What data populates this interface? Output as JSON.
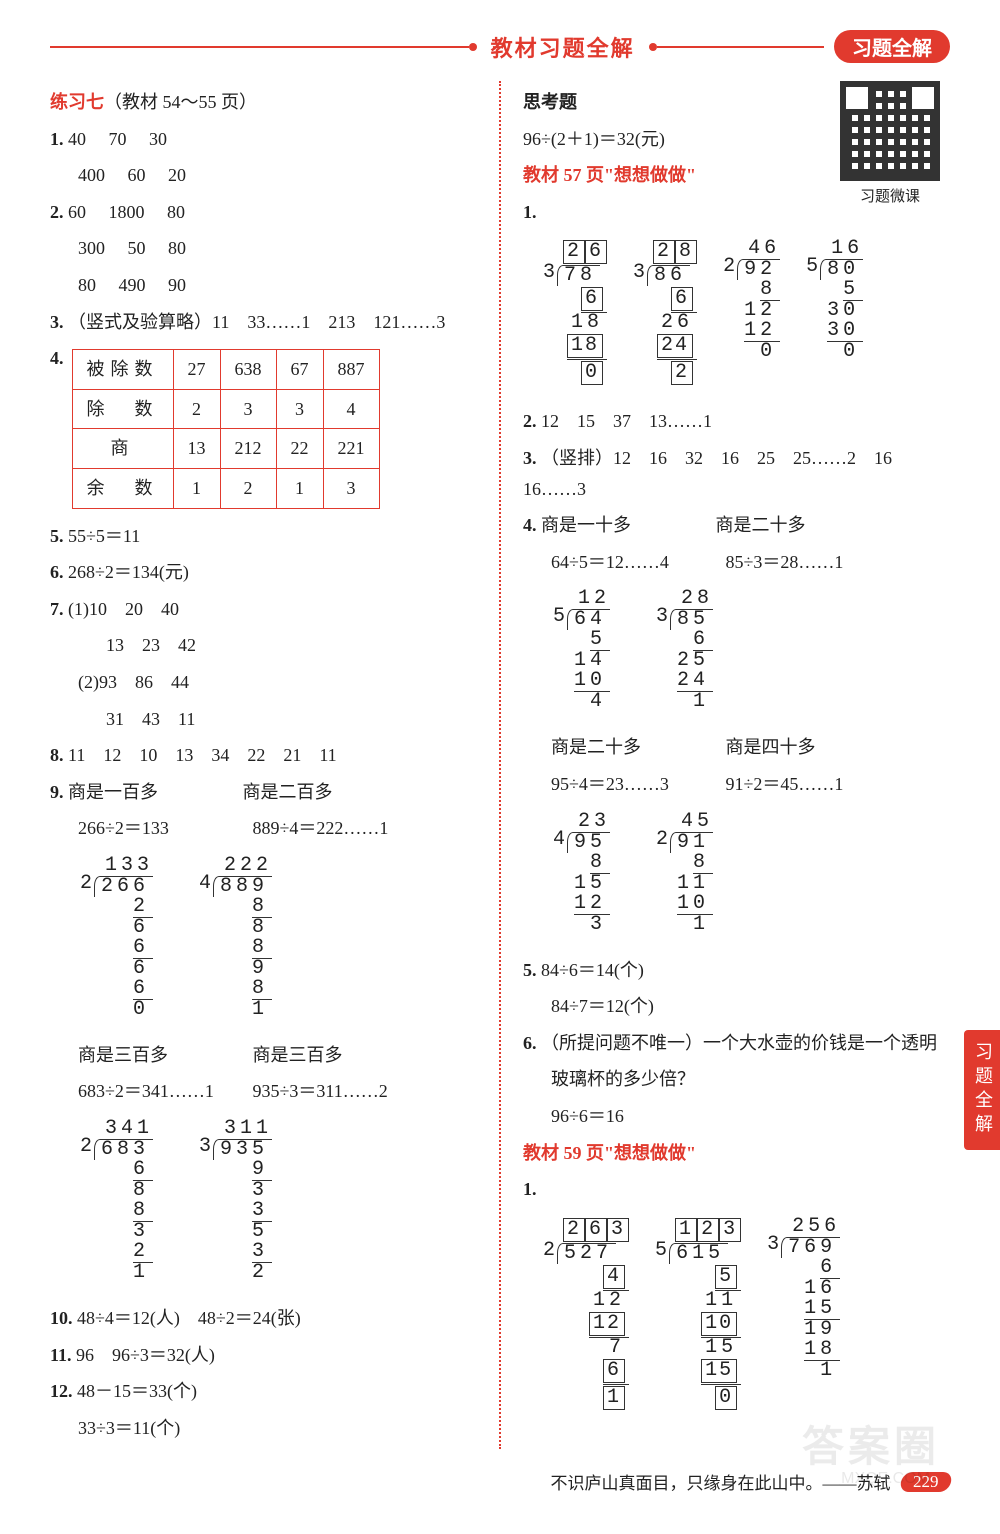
{
  "header": {
    "center_title": "教材习题全解",
    "badge": "习题全解"
  },
  "side_tab": "习题全解",
  "watermark_big": "答案圈",
  "watermark_small": "MXQE.COM",
  "footer": {
    "quote": "不识庐山真面目，只缘身在此山中。——苏轼",
    "page": "229"
  },
  "left": {
    "ex_title_prefix": "练习七",
    "ex_title_suffix": "（教材 54～55 页）",
    "q1": {
      "label": "1.",
      "r1a": "40",
      "r1b": "70",
      "r1c": "30",
      "r2a": "400",
      "r2b": "60",
      "r2c": "20"
    },
    "q2": {
      "label": "2.",
      "r1a": "60",
      "r1b": "1800",
      "r1c": "80",
      "r2a": "300",
      "r2b": "50",
      "r2c": "80",
      "r3a": "80",
      "r3b": "490",
      "r3c": "90"
    },
    "q3": {
      "label": "3.",
      "text": "（竖式及验算略）11　33……1　213　121……3"
    },
    "q4": {
      "label": "4.",
      "headers": [
        "被除数",
        "除　数",
        "商",
        "余　数"
      ],
      "rows": [
        [
          "27",
          "638",
          "67",
          "887"
        ],
        [
          "2",
          "3",
          "3",
          "4"
        ],
        [
          "13",
          "212",
          "22",
          "221"
        ],
        [
          "1",
          "2",
          "1",
          "3"
        ]
      ]
    },
    "q5": {
      "label": "5.",
      "text": "55÷5＝11"
    },
    "q6": {
      "label": "6.",
      "text": "268÷2＝134(元)"
    },
    "q7": {
      "label": "7.",
      "p1": "(1)10　20　40",
      "p1b": "13　23　42",
      "p2": "(2)93　86　44",
      "p2b": "31　43　11"
    },
    "q8": {
      "label": "8.",
      "text": "11　12　10　13　34　22　21　11"
    },
    "q9": {
      "label": "9.",
      "a_title": "商是一百多",
      "a_eq": "266÷2＝133",
      "b_title": "商是二百多",
      "b_eq": "889÷4＝222……1",
      "c_title": "商是三百多",
      "c_eq": "683÷2＝341……1",
      "d_title": "商是三百多",
      "d_eq": "935÷3＝311……2",
      "ld_a": {
        "divisor": "2",
        "dividend": "266",
        "quot": "133",
        "steps": [
          "2",
          "6",
          "6",
          "6",
          "6",
          "0"
        ]
      },
      "ld_b": {
        "divisor": "4",
        "dividend": "889",
        "quot": "222",
        "steps": [
          "8",
          "8",
          "8",
          "9",
          "8",
          "1"
        ]
      },
      "ld_c": {
        "divisor": "2",
        "dividend": "683",
        "quot": "341",
        "steps": [
          "6",
          "8",
          "8",
          "3",
          "2",
          "1"
        ]
      },
      "ld_d": {
        "divisor": "3",
        "dividend": "935",
        "quot": "311",
        "steps": [
          "9",
          "3",
          "3",
          "5",
          "3",
          "2"
        ]
      }
    },
    "q10": {
      "label": "10.",
      "text": "48÷4＝12(人)　48÷2＝24(张)"
    },
    "q11": {
      "label": "11.",
      "text": "96　96÷3＝32(人)"
    },
    "q12": {
      "label": "12.",
      "a": "48－15＝33(个)",
      "b": "33÷3＝11(个)"
    }
  },
  "right": {
    "think_label": "思考题",
    "think_eq": "96÷(2＋1)＝32(元)",
    "qr_caption": "习题微课",
    "sec57": "教材 57 页\"想想做做\"",
    "p57_q1": {
      "label": "1.",
      "ld_a": {
        "divisor": "3",
        "dividend": "78",
        "quot": "26",
        "boxed": true,
        "steps": [
          {
            "v": "6",
            "box": true
          },
          {
            "v": "18",
            "box": false
          },
          {
            "v": "18",
            "box": true
          },
          {
            "v": "0",
            "box": true
          }
        ]
      },
      "ld_b": {
        "divisor": "3",
        "dividend": "86",
        "quot": "28",
        "boxed": true,
        "steps": [
          {
            "v": "6",
            "box": true
          },
          {
            "v": "26",
            "box": false
          },
          {
            "v": "24",
            "box": true
          },
          {
            "v": "2",
            "box": true
          }
        ]
      },
      "ld_c": {
        "divisor": "2",
        "dividend": "92",
        "quot": "46",
        "steps": [
          {
            "v": "8"
          },
          {
            "v": "12"
          },
          {
            "v": "12"
          },
          {
            "v": "0"
          }
        ]
      },
      "ld_d": {
        "divisor": "5",
        "dividend": "80",
        "quot": "16",
        "steps": [
          {
            "v": "5"
          },
          {
            "v": "30"
          },
          {
            "v": "30"
          },
          {
            "v": "0"
          }
        ]
      }
    },
    "p57_q2": {
      "label": "2.",
      "text": "12　15　37　13……1"
    },
    "p57_q3": {
      "label": "3.",
      "text": "（竖排）12　16　32　16　25　25……2　16　16……3"
    },
    "p57_q4": {
      "label": "4.",
      "a_title": "商是一十多",
      "a_eq": "64÷5＝12……4",
      "b_title": "商是二十多",
      "b_eq": "85÷3＝28……1",
      "c_title": "商是二十多",
      "c_eq": "95÷4＝23……3",
      "d_title": "商是四十多",
      "d_eq": "91÷2＝45……1",
      "ld_a": {
        "divisor": "5",
        "dividend": "64",
        "quot": "12",
        "steps": [
          "5",
          "14",
          "10",
          "4"
        ]
      },
      "ld_b": {
        "divisor": "3",
        "dividend": "85",
        "quot": "28",
        "steps": [
          "6",
          "25",
          "24",
          "1"
        ]
      },
      "ld_c": {
        "divisor": "4",
        "dividend": "95",
        "quot": "23",
        "steps": [
          "8",
          "15",
          "12",
          "3"
        ]
      },
      "ld_d": {
        "divisor": "2",
        "dividend": "91",
        "quot": "45",
        "steps": [
          "8",
          "11",
          "10",
          "1"
        ]
      }
    },
    "p57_q5": {
      "label": "5.",
      "a": "84÷6＝14(个)",
      "b": "84÷7＝12(个)"
    },
    "p57_q6": {
      "label": "6.",
      "a": "（所提问题不唯一）一个大水壶的价钱是一个透明",
      "b": "玻璃杯的多少倍？",
      "c": "96÷6＝16"
    },
    "sec59": "教材 59 页\"想想做做\"",
    "p59_q1": {
      "label": "1.",
      "ld_a": {
        "divisor": "2",
        "dividend": "527",
        "quot": "263",
        "boxed": true,
        "steps": [
          {
            "v": "4",
            "box": true
          },
          {
            "v": "12",
            "box": false
          },
          {
            "v": "12",
            "box": true
          },
          {
            "v": "7",
            "box": false
          },
          {
            "v": "6",
            "box": true
          },
          {
            "v": "1",
            "box": true
          }
        ]
      },
      "ld_b": {
        "divisor": "5",
        "dividend": "615",
        "quot": "123",
        "boxed": true,
        "steps": [
          {
            "v": "5",
            "box": true
          },
          {
            "v": "11",
            "box": false
          },
          {
            "v": "10",
            "box": true
          },
          {
            "v": "15",
            "box": false
          },
          {
            "v": "15",
            "box": true
          },
          {
            "v": "0",
            "box": true
          }
        ]
      },
      "ld_c": {
        "divisor": "3",
        "dividend": "769",
        "quot": "256",
        "steps": [
          {
            "v": "6"
          },
          {
            "v": "16"
          },
          {
            "v": "15"
          },
          {
            "v": "19"
          },
          {
            "v": "18"
          },
          {
            "v": "1"
          }
        ]
      }
    }
  }
}
